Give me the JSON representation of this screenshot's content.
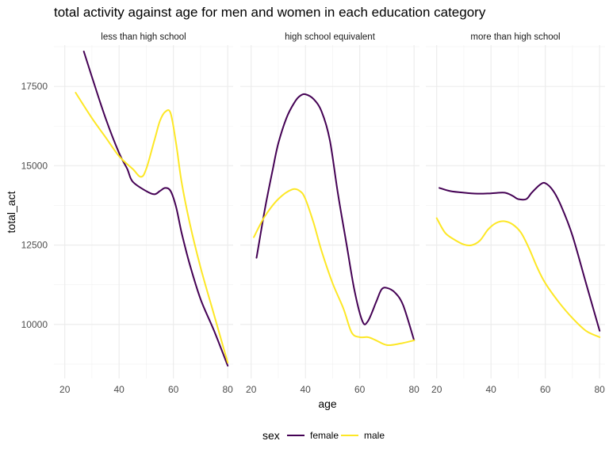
{
  "chart_data": {
    "type": "line",
    "title": "total activity against age for men and women in each education category",
    "xlabel": "age",
    "ylabel": "total_act",
    "xlim": [
      16,
      82
    ],
    "ylim": [
      8300,
      18800
    ],
    "x_ticks": [
      20,
      40,
      60,
      80
    ],
    "y_ticks": [
      10000,
      12500,
      15000,
      17500
    ],
    "x_tick_labels": [
      "20",
      "40",
      "60",
      "80"
    ],
    "y_tick_labels": [
      "10000",
      "12500",
      "15000",
      "17500"
    ],
    "grid": true,
    "legend": {
      "title": "sex",
      "position": "bottom",
      "entries": [
        {
          "label": "female",
          "color": "#440154"
        },
        {
          "label": "male",
          "color": "#FDE725"
        }
      ]
    },
    "panels": [
      {
        "label": "less than high school",
        "series": [
          {
            "name": "female",
            "color": "#440154",
            "x": [
              27,
              30,
              35,
              40,
              43,
              45,
              50,
              53,
              55,
              57,
              59,
              61,
              63,
              66,
              70,
              75,
              80
            ],
            "y": [
              18600,
              17800,
              16500,
              15400,
              14900,
              14500,
              14200,
              14100,
              14200,
              14300,
              14200,
              13700,
              12900,
              11900,
              10800,
              9800,
              8700
            ]
          },
          {
            "name": "male",
            "color": "#FDE725",
            "x": [
              24,
              30,
              35,
              40,
              45,
              48,
              50,
              53,
              55,
              57,
              59,
              61,
              63,
              66,
              70,
              75,
              80
            ],
            "y": [
              17300,
              16500,
              15900,
              15300,
              14900,
              14650,
              14900,
              15800,
              16400,
              16700,
              16650,
              15700,
              14500,
              13200,
              11800,
              10300,
              8800
            ]
          }
        ]
      },
      {
        "label": "high school equivalent",
        "series": [
          {
            "name": "female",
            "color": "#440154",
            "x": [
              22,
              25,
              28,
              30,
              33,
              36,
              38,
              40,
              43,
              46,
              49,
              52,
              55,
              58,
              61,
              63,
              66,
              68,
              70,
              73,
              76,
              80
            ],
            "y": [
              12100,
              13600,
              14900,
              15700,
              16500,
              17000,
              17200,
              17250,
              17100,
              16700,
              15800,
              14100,
              12600,
              11100,
              10100,
              10100,
              10700,
              11100,
              11150,
              11000,
              10600,
              9500
            ]
          },
          {
            "name": "male",
            "color": "#FDE725",
            "x": [
              21,
              25,
              30,
              35,
              38,
              40,
              43,
              46,
              50,
              54,
              57,
              60,
              63,
              66,
              70,
              75,
              80
            ],
            "y": [
              12750,
              13400,
              13950,
              14250,
              14200,
              13950,
              13200,
              12300,
              11300,
              10500,
              9750,
              9600,
              9600,
              9500,
              9350,
              9400,
              9500
            ]
          }
        ]
      },
      {
        "label": "more than high school",
        "series": [
          {
            "name": "female",
            "color": "#440154",
            "x": [
              21,
              25,
              30,
              35,
              40,
              45,
              48,
              50,
              53,
              55,
              58,
              60,
              63,
              66,
              70,
              75,
              80
            ],
            "y": [
              14300,
              14200,
              14150,
              14120,
              14130,
              14150,
              14050,
              13950,
              13950,
              14150,
              14400,
              14450,
              14200,
              13700,
              12800,
              11300,
              9800
            ]
          },
          {
            "name": "male",
            "color": "#FDE725",
            "x": [
              20,
              23,
              26,
              30,
              33,
              36,
              39,
              42,
              45,
              48,
              51,
              54,
              57,
              60,
              65,
              70,
              75,
              80
            ],
            "y": [
              13350,
              12900,
              12700,
              12520,
              12500,
              12650,
              13000,
              13200,
              13250,
              13150,
              12900,
              12400,
              11800,
              11300,
              10700,
              10200,
              9800,
              9600
            ]
          }
        ]
      }
    ]
  }
}
